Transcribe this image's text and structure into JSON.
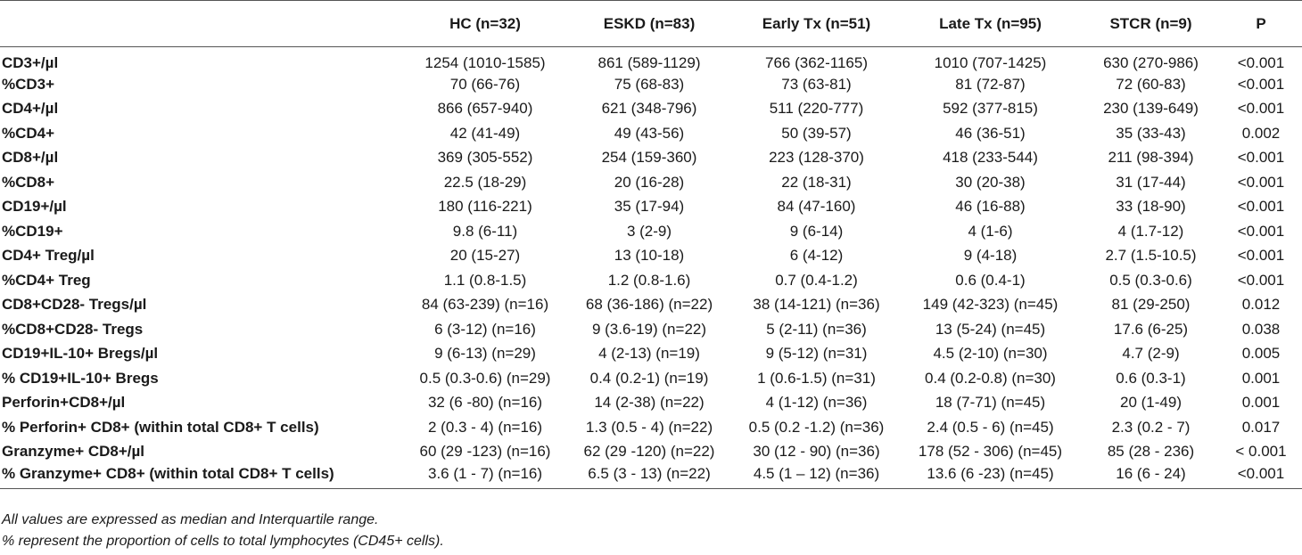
{
  "table": {
    "columns": [
      "",
      "HC (n=32)",
      "ESKD (n=83)",
      "Early Tx (n=51)",
      "Late Tx (n=95)",
      "STCR (n=9)",
      "P"
    ],
    "rows": [
      [
        "CD3+/µl",
        "1254 (1010-1585)",
        "861 (589-1129)",
        "766 (362-1165)",
        "1010 (707-1425)",
        "630 (270-986)",
        "<0.001"
      ],
      [
        "%CD3+",
        "70 (66-76)",
        "75 (68-83)",
        "73 (63-81)",
        "81 (72-87)",
        "72 (60-83)",
        "<0.001"
      ],
      [
        "CD4+/µl",
        "866 (657-940)",
        "621 (348-796)",
        "511 (220-777)",
        "592 (377-815)",
        "230 (139-649)",
        "<0.001"
      ],
      [
        "%CD4+",
        "42 (41-49)",
        "49 (43-56)",
        "50 (39-57)",
        "46 (36-51)",
        "35 (33-43)",
        "0.002"
      ],
      [
        "CD8+/µl",
        "369 (305-552)",
        "254 (159-360)",
        "223 (128-370)",
        "418 (233-544)",
        "211 (98-394)",
        "<0.001"
      ],
      [
        "%CD8+",
        "22.5 (18-29)",
        "20 (16-28)",
        "22 (18-31)",
        "30 (20-38)",
        "31 (17-44)",
        "<0.001"
      ],
      [
        "CD19+/µl",
        "180 (116-221)",
        "35 (17-94)",
        "84 (47-160)",
        "46 (16-88)",
        "33 (18-90)",
        "<0.001"
      ],
      [
        "%CD19+",
        "9.8 (6-11)",
        "3 (2-9)",
        "9 (6-14)",
        "4 (1-6)",
        "4 (1.7-12)",
        "<0.001"
      ],
      [
        "CD4+ Treg/µl",
        "20 (15-27)",
        "13 (10-18)",
        "6 (4-12)",
        "9 (4-18)",
        "2.7 (1.5-10.5)",
        "<0.001"
      ],
      [
        "%CD4+ Treg",
        "1.1 (0.8-1.5)",
        "1.2 (0.8-1.6)",
        "0.7 (0.4-1.2)",
        "0.6 (0.4-1)",
        "0.5 (0.3-0.6)",
        "<0.001"
      ],
      [
        "CD8+CD28- Tregs/µl",
        "84 (63-239) (n=16)",
        "68 (36-186) (n=22)",
        "38 (14-121) (n=36)",
        "149 (42-323) (n=45)",
        "81 (29-250)",
        "0.012"
      ],
      [
        "%CD8+CD28- Tregs",
        "6 (3-12) (n=16)",
        "9 (3.6-19) (n=22)",
        "5 (2-11) (n=36)",
        "13 (5-24) (n=45)",
        "17.6 (6-25)",
        "0.038"
      ],
      [
        "CD19+IL-10+ Bregs/µl",
        "9 (6-13) (n=29)",
        "4 (2-13) (n=19)",
        "9 (5-12) (n=31)",
        "4.5 (2-10) (n=30)",
        "4.7 (2-9)",
        "0.005"
      ],
      [
        "% CD19+IL-10+ Bregs",
        "0.5 (0.3-0.6) (n=29)",
        "0.4 (0.2-1) (n=19)",
        "1 (0.6-1.5) (n=31)",
        "0.4 (0.2-0.8) (n=30)",
        "0.6 (0.3-1)",
        "0.001"
      ],
      [
        "Perforin+CD8+/µl",
        "32 (6 -80) (n=16)",
        "14 (2-38) (n=22)",
        "4 (1-12) (n=36)",
        "18 (7-71) (n=45)",
        "20 (1-49)",
        "0.001"
      ],
      [
        "% Perforin+ CD8+ (within total CD8+ T cells)",
        "2 (0.3 - 4) (n=16)",
        "1.3 (0.5 - 4) (n=22)",
        "0.5 (0.2 -1.2) (n=36)",
        "2.4 (0.5 - 6) (n=45)",
        "2.3 (0.2 - 7)",
        "0.017"
      ],
      [
        "Granzyme+ CD8+/µl",
        "60 (29 -123) (n=16)",
        "62 (29 -120) (n=22)",
        "30 (12 - 90) (n=36)",
        "178 (52 - 306) (n=45)",
        "85 (28 - 236)",
        "< 0.001"
      ],
      [
        "% Granzyme+ CD8+ (within total CD8+ T cells)",
        "3.6 (1 - 7) (n=16)",
        "6.5 (3 - 13) (n=22)",
        "4.5 (1 – 12) (n=36)",
        "13.6 (6 -23) (n=45)",
        "16 (6 - 24)",
        "<0.001"
      ]
    ]
  },
  "notes": [
    "All values are expressed as median and Interquartile range.",
    "% represent the proportion of cells to total lymphocytes (CD45+ cells)."
  ]
}
